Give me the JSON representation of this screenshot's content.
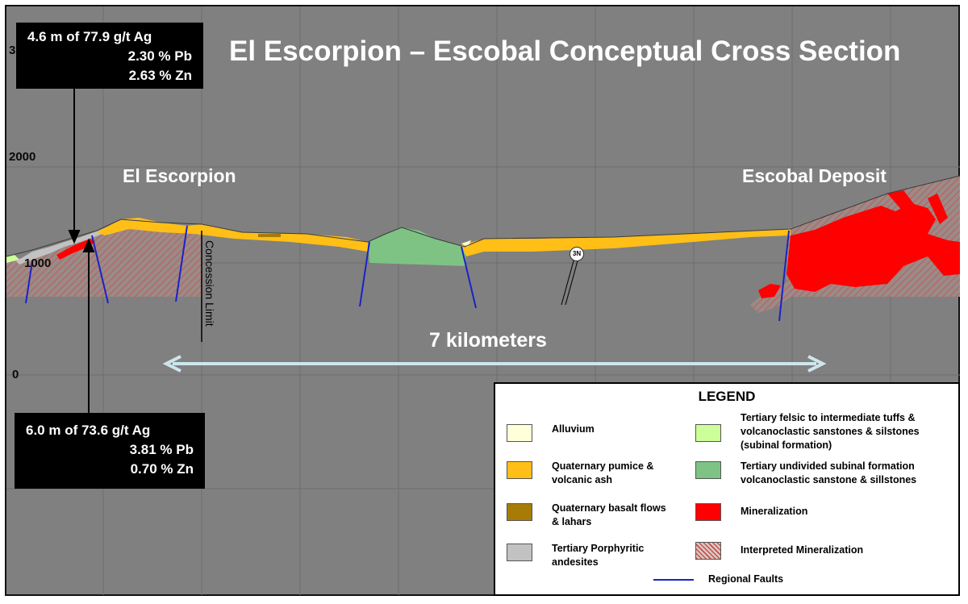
{
  "title": "El Escorpion – Escobal Conceptual Cross Section",
  "elevation_labels": {
    "top": "3",
    "e2000": "2000",
    "e1000": "1000",
    "e0": "0"
  },
  "places": {
    "left": "El Escorpion",
    "right": "Escobal Deposit"
  },
  "distance_label": "7 kilometers",
  "concession_label": "Concession Limit",
  "fault_tag": "3N",
  "assays": {
    "upper": {
      "line1": "4.6 m of 77.9 g/t Ag",
      "line2": "2.30 % Pb",
      "line3": "2.63 % Zn"
    },
    "lower": {
      "line1": "6.0 m of 73.6 g/t Ag",
      "line2": "3.81 % Pb",
      "line3": "0.70 % Zn"
    }
  },
  "legend": {
    "title": "LEGEND",
    "items": [
      {
        "label_1": "Alluvium",
        "label_2": "",
        "label_3": "",
        "color": "#ffffd8"
      },
      {
        "label_1": "Quaternary pumice &",
        "label_2": "volcanic ash",
        "label_3": "",
        "color": "#ffbf16"
      },
      {
        "label_1": "Quaternary basalt flows",
        "label_2": "& lahars",
        "label_3": "",
        "color": "#a77b06"
      },
      {
        "label_1": "Tertiary Porphyritic",
        "label_2": "andesites",
        "label_3": "",
        "color": "#c2c2c2"
      },
      {
        "label_1": "Tertiary  felsic to intermediate tuffs &",
        "label_2": "volcanoclastic sanstones & silstones",
        "label_3": "(subinal formation)",
        "color": "#ccff99"
      },
      {
        "label_1": "Tertiary undivided subinal formation",
        "label_2": "volcanoclastic sanstone & sillstones",
        "label_3": "",
        "color": "#7ec384"
      },
      {
        "label_1": "Mineralization",
        "label_2": "",
        "label_3": "",
        "color": "#ff0000"
      },
      {
        "label_1": "Interpreted Mineralization",
        "label_2": "",
        "label_3": "",
        "color": "#b58a86"
      }
    ],
    "faults_label": "Regional Faults",
    "faults_color": "#1a22c8"
  }
}
